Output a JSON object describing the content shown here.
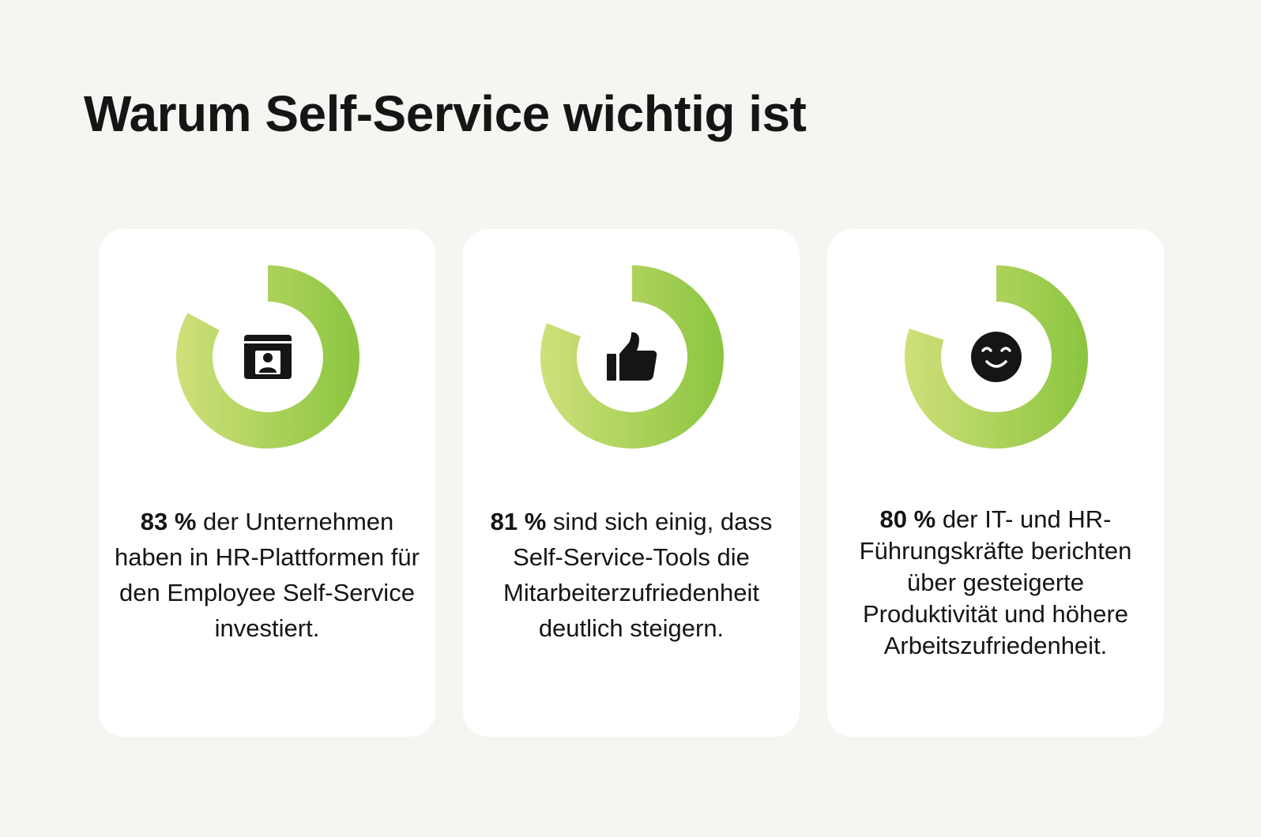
{
  "page": {
    "title": "Warum Self-Service wichtig ist"
  },
  "colors": {
    "background": "#f5f5f1",
    "card": "#ffffff",
    "ring_light": "#cfe07a",
    "ring_dark": "#8bc53f",
    "icon": "#151515"
  },
  "stats": [
    {
      "value": "83 %",
      "fraction": 0.83,
      "text": " der Unternehmen haben in HR-Plattformen für den Employee Self-Service investiert.",
      "icon": "id-card-icon"
    },
    {
      "value": "81 %",
      "fraction": 0.81,
      "text": " sind sich einig, dass Self-Service-Tools die Mitarbeiterzufriedenheit deutlich steigern.",
      "icon": "thumbs-up-icon"
    },
    {
      "value": "80 %",
      "fraction": 0.8,
      "text": " der IT- und HR-Führungskräfte berichten über gesteigerte Produktivität und höhere Arbeitszufriedenheit.",
      "icon": "smiley-icon"
    }
  ]
}
